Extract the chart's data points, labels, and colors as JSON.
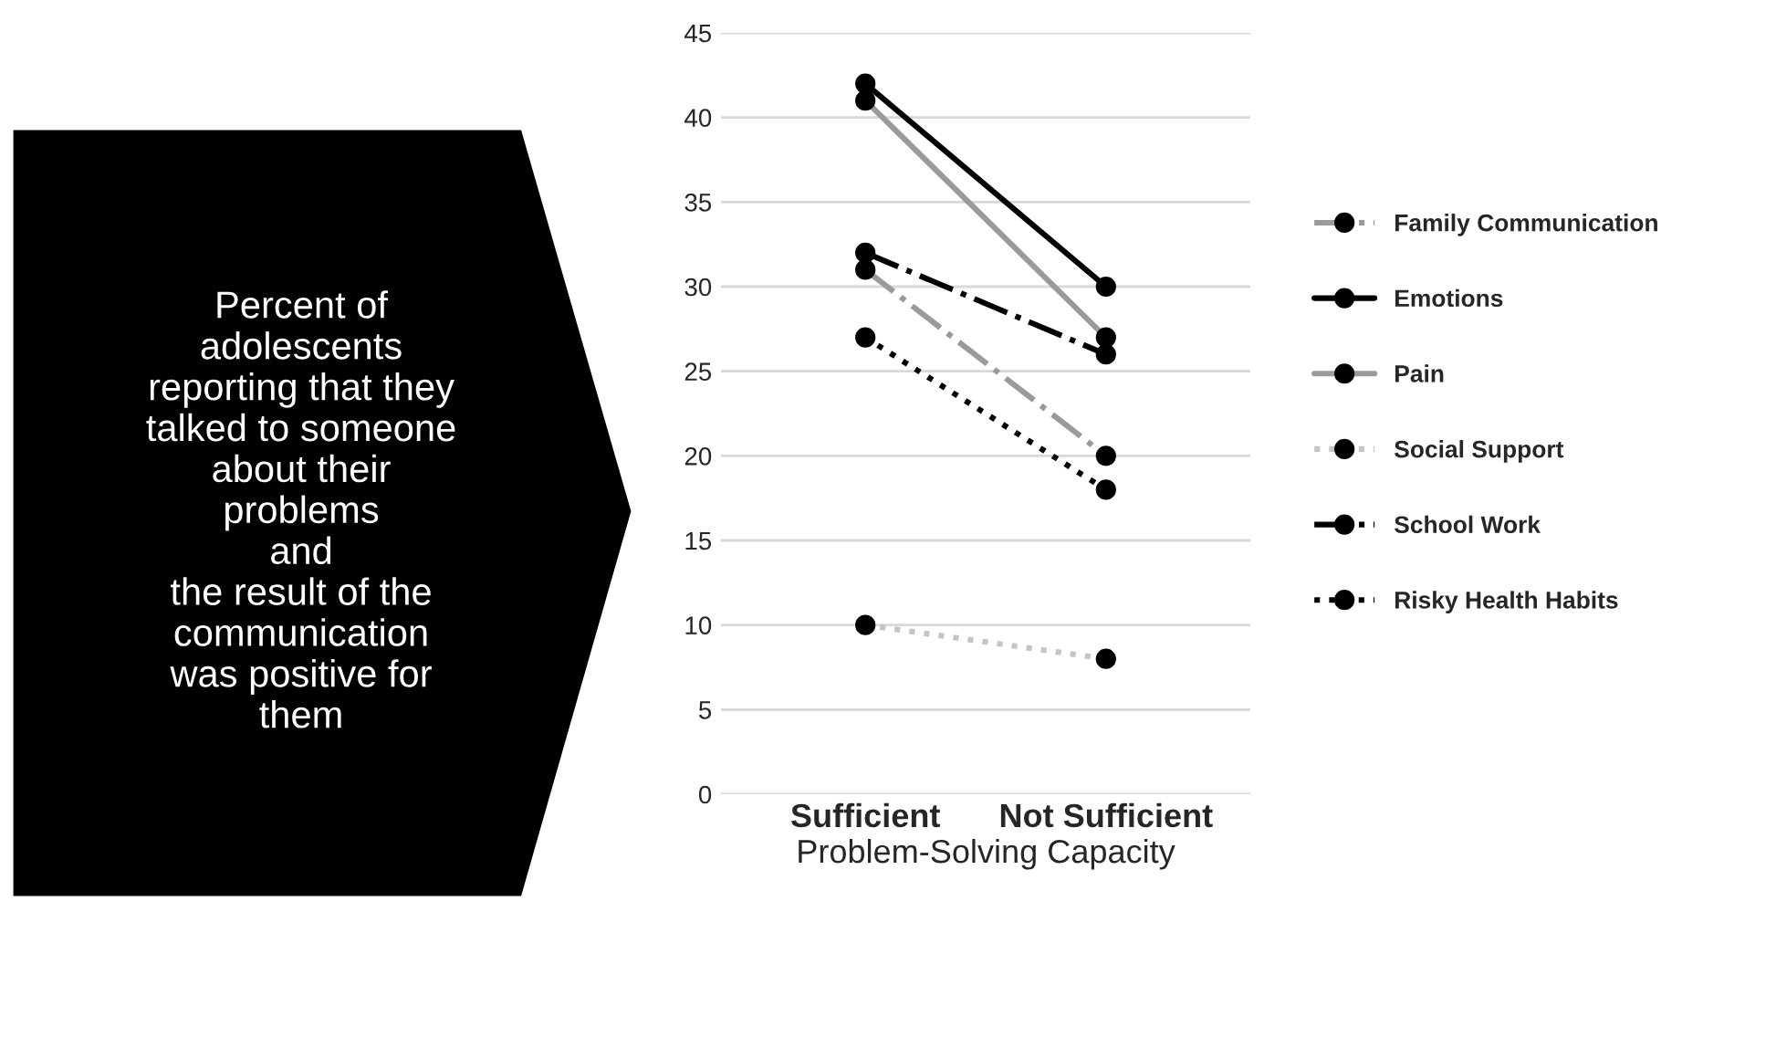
{
  "chart_data": {
    "type": "line",
    "xlabel": "Problem-Solving Capacity",
    "categories": [
      "Sufficient",
      "Not Sufficient"
    ],
    "series": [
      {
        "name": "Family Communication",
        "color": "#9a9a9a",
        "values": [
          31,
          20
        ],
        "line_style": "dashdot"
      },
      {
        "name": "Emotions",
        "color": "#000000",
        "values": [
          42,
          30
        ],
        "line_style": "solid"
      },
      {
        "name": "Pain",
        "color": "#9a9a9a",
        "values": [
          41,
          27
        ],
        "line_style": "solid"
      },
      {
        "name": "Social Support",
        "color": "#c4c4c4",
        "values": [
          10,
          8
        ],
        "line_style": "dotted"
      },
      {
        "name": "School Work",
        "color": "#000000",
        "values": [
          32,
          26
        ],
        "line_style": "dashdot"
      },
      {
        "name": "Risky Health Habits",
        "color": "#000000",
        "values": [
          27,
          18
        ],
        "line_style": "dotted"
      }
    ],
    "ylim": [
      0,
      45
    ],
    "yticks": [
      0,
      5,
      10,
      15,
      20,
      25,
      30,
      35,
      40,
      45
    ],
    "grid": "y",
    "legend": "right",
    "marker": "circle",
    "annotations": [
      "Percent of\nadolescents\nreporting that they\ntalked to someone\nabout their\nproblems\nand\nthe result of the\ncommunication\nwas positive for\nthem"
    ]
  }
}
